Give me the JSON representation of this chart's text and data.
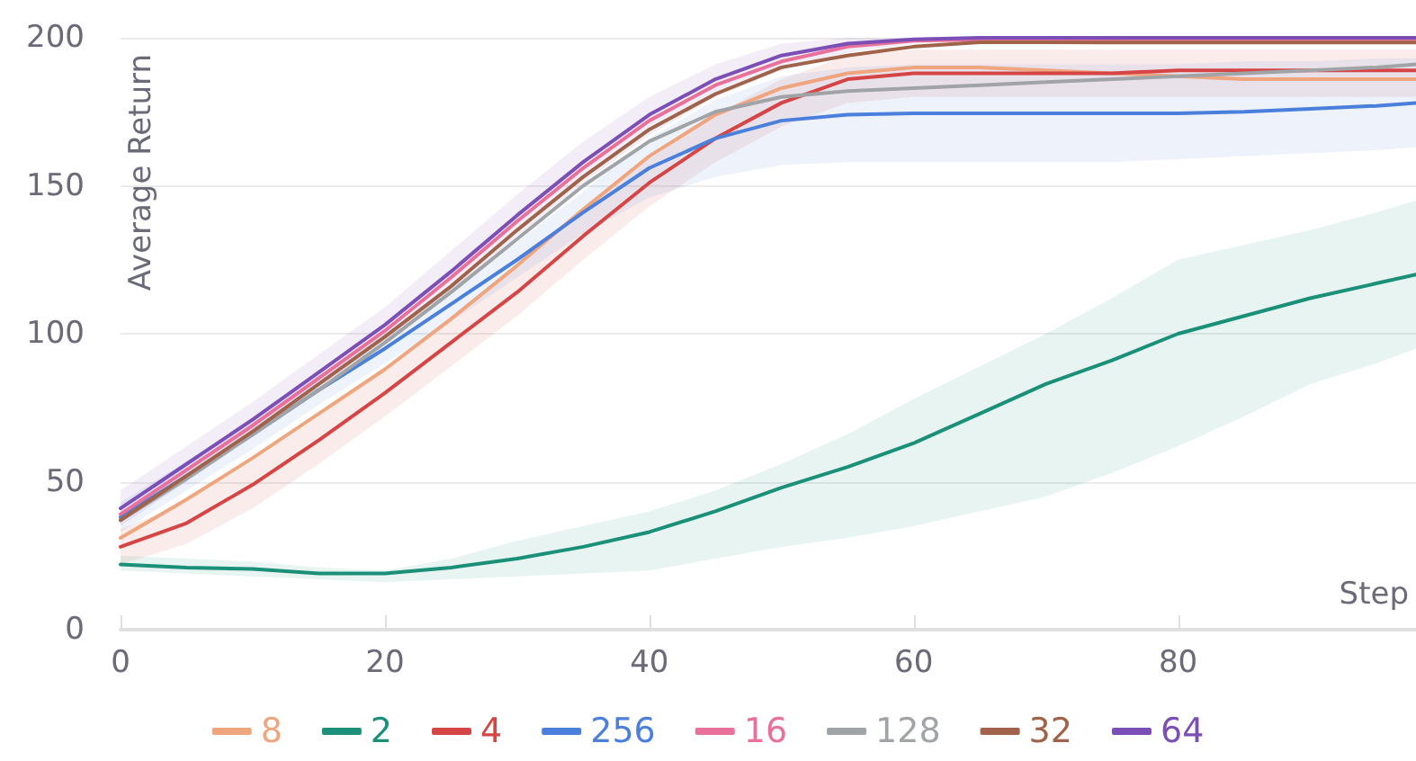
{
  "chart_data": {
    "type": "line",
    "xlabel": "Step",
    "ylabel": "Average Return",
    "x": [
      0,
      5,
      10,
      15,
      20,
      25,
      30,
      35,
      40,
      45,
      50,
      55,
      60,
      65,
      70,
      75,
      80,
      85,
      90,
      95,
      98
    ],
    "xlim": [
      0,
      98
    ],
    "xticks": [
      0,
      20,
      40,
      60,
      80
    ],
    "ylim": [
      0,
      200
    ],
    "yticks": [
      0,
      50,
      100,
      150,
      200
    ],
    "grid": "y",
    "legend": "bottom",
    "marker": "none",
    "line_style": "solid",
    "series": [
      {
        "name": "8",
        "color": "#efa57e",
        "values": [
          31,
          44,
          58,
          73,
          88,
          105,
          123,
          142,
          160,
          174,
          183,
          188,
          190,
          190,
          189,
          188,
          187,
          186,
          186,
          186,
          186
        ]
      },
      {
        "name": "2",
        "color": "#1a9079",
        "values": [
          22,
          21,
          20.5,
          19,
          19,
          21,
          24,
          28,
          33,
          40,
          48,
          55,
          63,
          73,
          83,
          91,
          100,
          106,
          112,
          117,
          120
        ],
        "lower": [
          20,
          19,
          18,
          17,
          16,
          17,
          18,
          19,
          20,
          24,
          28,
          31,
          35,
          40,
          45,
          53,
          62,
          72,
          83,
          90,
          95
        ],
        "upper": [
          25,
          24,
          23,
          21,
          20,
          24,
          30,
          35,
          40,
          47,
          56,
          66,
          78,
          89,
          100,
          112,
          125,
          130,
          135,
          141,
          145
        ]
      },
      {
        "name": "4",
        "color": "#d64545",
        "values": [
          28,
          36,
          49,
          64,
          80,
          97,
          114,
          133,
          151,
          166,
          178,
          186,
          188,
          188,
          188,
          188,
          189,
          189,
          189,
          189,
          189
        ],
        "lower": [
          22,
          29,
          41,
          56,
          72,
          89,
          106,
          125,
          143,
          158,
          170,
          178,
          180,
          180,
          180,
          180,
          180,
          180,
          180,
          180,
          180
        ],
        "upper": [
          34,
          43,
          57,
          72,
          88,
          105,
          122,
          141,
          159,
          174,
          186,
          194,
          196,
          196,
          196,
          196,
          196,
          196,
          196,
          196,
          196
        ]
      },
      {
        "name": "256",
        "color": "#4a7fdb",
        "values": [
          38,
          52,
          66,
          81,
          95,
          110,
          125,
          141,
          156,
          166,
          172,
          174,
          174.5,
          174.5,
          174.5,
          174.5,
          174.5,
          175,
          176,
          177,
          178
        ],
        "lower": [
          33,
          47,
          61,
          76,
          90,
          104,
          119,
          134,
          146,
          153,
          157,
          158,
          158,
          158,
          158,
          158,
          159,
          160,
          161,
          162,
          163
        ],
        "upper": [
          43,
          57,
          71,
          86,
          100,
          116,
          131,
          148,
          166,
          179,
          187,
          190,
          191,
          191,
          191,
          191,
          191,
          192,
          192,
          193,
          193
        ]
      },
      {
        "name": "16",
        "color": "#e8709b",
        "values": [
          39,
          54,
          69,
          85,
          101,
          119,
          138,
          156,
          172,
          184,
          192,
          197,
          199,
          199.4,
          199.4,
          199.3,
          199.2,
          199.2,
          199.2,
          199.2,
          199.2
        ]
      },
      {
        "name": "128",
        "color": "#a0a4a6",
        "values": [
          37,
          51,
          66,
          81,
          97,
          114,
          132,
          150,
          165,
          175,
          180,
          182,
          183,
          184,
          185,
          186,
          187,
          188,
          189,
          190,
          191
        ]
      },
      {
        "name": "32",
        "color": "#a0634a",
        "values": [
          37,
          52,
          67,
          83,
          99,
          116,
          135,
          153,
          169,
          181,
          190,
          194,
          197,
          198.5,
          198.5,
          198.4,
          198.4,
          198.4,
          198.4,
          198.4,
          198.4
        ]
      },
      {
        "name": "64",
        "color": "#7b4fb5",
        "values": [
          41,
          56,
          71,
          87,
          103,
          121,
          140,
          158,
          174,
          186,
          194,
          198,
          199.5,
          200,
          200,
          200,
          200,
          200,
          200,
          200,
          200
        ],
        "lower": [
          35,
          50,
          65,
          81,
          97,
          114,
          133,
          151,
          167,
          180,
          189,
          195,
          198,
          199,
          199,
          199,
          199,
          199,
          199,
          199,
          199
        ],
        "upper": [
          47,
          62,
          77,
          93,
          109,
          128,
          147,
          165,
          180,
          191,
          198,
          200,
          200,
          200,
          200,
          200,
          200,
          200,
          200,
          200,
          200
        ]
      }
    ]
  }
}
